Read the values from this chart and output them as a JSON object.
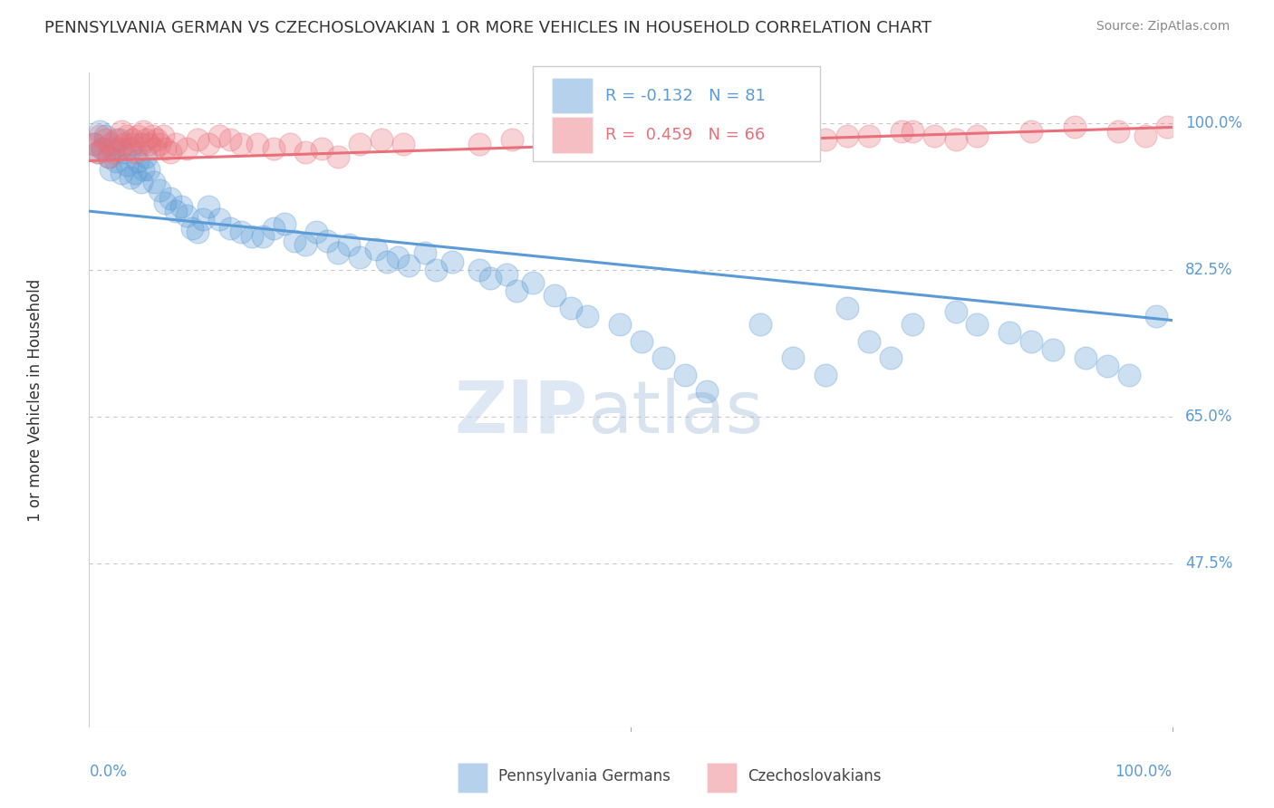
{
  "title": "PENNSYLVANIA GERMAN VS CZECHOSLOVAKIAN 1 OR MORE VEHICLES IN HOUSEHOLD CORRELATION CHART",
  "source": "Source: ZipAtlas.com",
  "ylabel": "1 or more Vehicles in Household",
  "ytick_labels": [
    "100.0%",
    "82.5%",
    "65.0%",
    "47.5%"
  ],
  "ytick_values": [
    1.0,
    0.825,
    0.65,
    0.475
  ],
  "xlim": [
    0.0,
    1.0
  ],
  "ylim": [
    0.28,
    1.06
  ],
  "r_blue": -0.132,
  "n_blue": 81,
  "r_pink": 0.459,
  "n_pink": 66,
  "blue_color": "#5b9bd5",
  "pink_color": "#e8707a",
  "title_fontsize": 13,
  "source_fontsize": 10,
  "watermark_zip": "ZIP",
  "watermark_atlas": "atlas",
  "background_color": "#ffffff",
  "grid_color": "#c8c8c8",
  "blue_trend": [
    0.895,
    0.765
  ],
  "pink_trend": [
    0.955,
    0.995
  ]
}
